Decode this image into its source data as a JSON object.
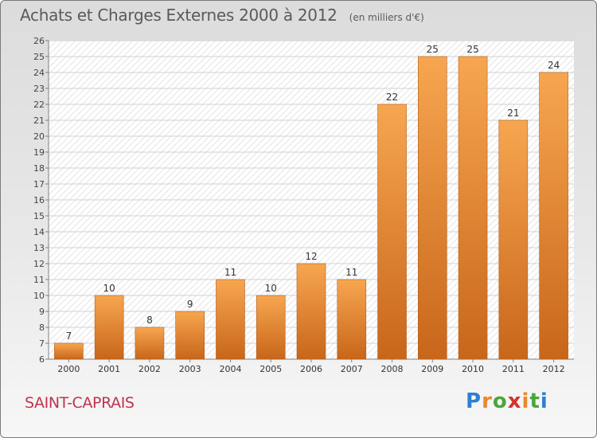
{
  "title": "Achats et Charges Externes 2000 à 2012",
  "unit": "(en milliers d'€)",
  "commune": "SAINT-CAPRAIS",
  "brand": {
    "letters": [
      "P",
      "r",
      "o",
      "x",
      "i",
      "t",
      "i"
    ],
    "colors": [
      "#2f7fd0",
      "#e8892a",
      "#4aa63a",
      "#d6332f",
      "#e8892a",
      "#4aa63a",
      "#2f7fd0"
    ]
  },
  "colors": {
    "bar_light": "#f7a650",
    "bar_dark": "#c8661a",
    "title": "#5a5a5a",
    "commune": "#c0334d"
  },
  "chart_data": {
    "type": "bar",
    "categories": [
      "2000",
      "2001",
      "2002",
      "2003",
      "2004",
      "2005",
      "2006",
      "2007",
      "2008",
      "2009",
      "2010",
      "2011",
      "2012"
    ],
    "values": [
      7,
      10,
      8,
      9,
      11,
      10,
      12,
      11,
      22,
      25,
      25,
      21,
      24
    ],
    "ylim": [
      6,
      26
    ],
    "yticks": [
      6,
      7,
      8,
      9,
      10,
      11,
      12,
      13,
      14,
      15,
      16,
      17,
      18,
      19,
      20,
      21,
      22,
      23,
      24,
      25,
      26
    ],
    "grid": true,
    "data_labels": true
  }
}
